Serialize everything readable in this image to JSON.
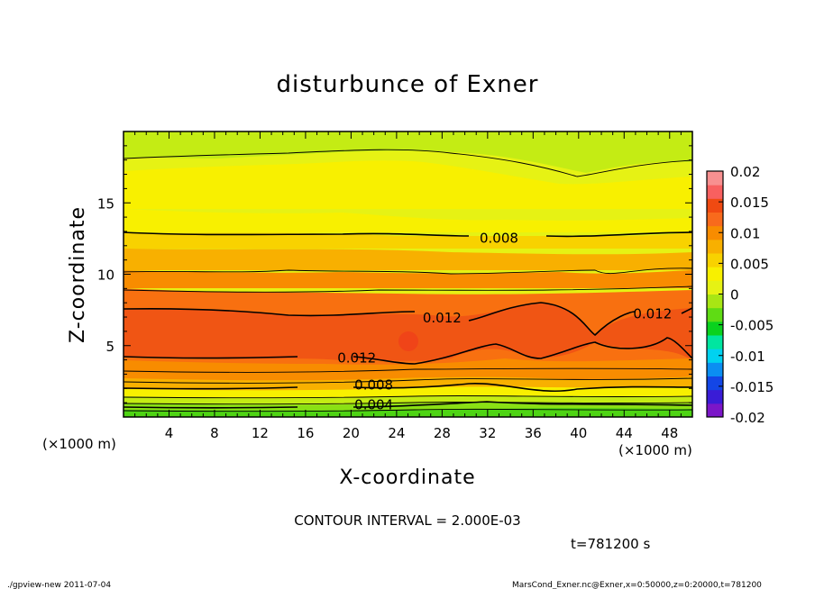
{
  "figure": {
    "title": "disturbunce of Exner",
    "xlabel": "X-coordinate",
    "ylabel": "Z-coordinate",
    "x_unit": "(×1000 m)",
    "y_unit": "(×1000 m)",
    "contour_interval": "CONTOUR INTERVAL = 2.000E-03",
    "time": "t=781200 s",
    "footer_left": "./gpview-new   2011-07-04",
    "footer_right": "MarsCond_Exner.nc@Exner,x=0:50000,z=0:20000,t=781200"
  },
  "chart_data": {
    "type": "heatmap",
    "title": "disturbunce of Exner",
    "xlabel": "X-coordinate",
    "ylabel": "Z-coordinate",
    "x_unit": "×1000 m",
    "y_unit": "×1000 m",
    "xlim": [
      0,
      50
    ],
    "ylim": [
      0,
      20
    ],
    "xticks": [
      4,
      8,
      12,
      16,
      20,
      24,
      28,
      32,
      36,
      40,
      44,
      48
    ],
    "yticks": [
      5,
      10,
      15
    ],
    "colorbar": {
      "ticks": [
        "0.02",
        "0.015",
        "0.01",
        "0.005",
        "0",
        "-0.005",
        "-0.01",
        "-0.015",
        "-0.02"
      ],
      "range": [
        -0.02,
        0.02
      ],
      "colors": [
        "#7b16c8",
        "#3a1cd6",
        "#1346e6",
        "#0b8ef2",
        "#00d2f0",
        "#00e6a0",
        "#0ad21e",
        "#5fdc14",
        "#a8e614",
        "#e6f214",
        "#f8f000",
        "#f8d200",
        "#f8b000",
        "#f88c00",
        "#f86a1c",
        "#f04a12",
        "#f86060",
        "#f89090"
      ]
    },
    "contour_labels": [
      {
        "text": "0.004",
        "x": 22,
        "z": 0.9
      },
      {
        "text": "0.008",
        "x": 22,
        "z": 2.3
      },
      {
        "text": "0.012",
        "x": 20.5,
        "z": 4.2
      },
      {
        "text": "0.012",
        "x": 28,
        "z": 7.0
      },
      {
        "text": "0.012",
        "x": 46.5,
        "z": 7.3
      },
      {
        "text": "0.008",
        "x": 33,
        "z": 12.6
      }
    ],
    "contour_levels": [
      0.004,
      0.008,
      0.012
    ],
    "contour_interval": 0.002,
    "time": 781200
  }
}
